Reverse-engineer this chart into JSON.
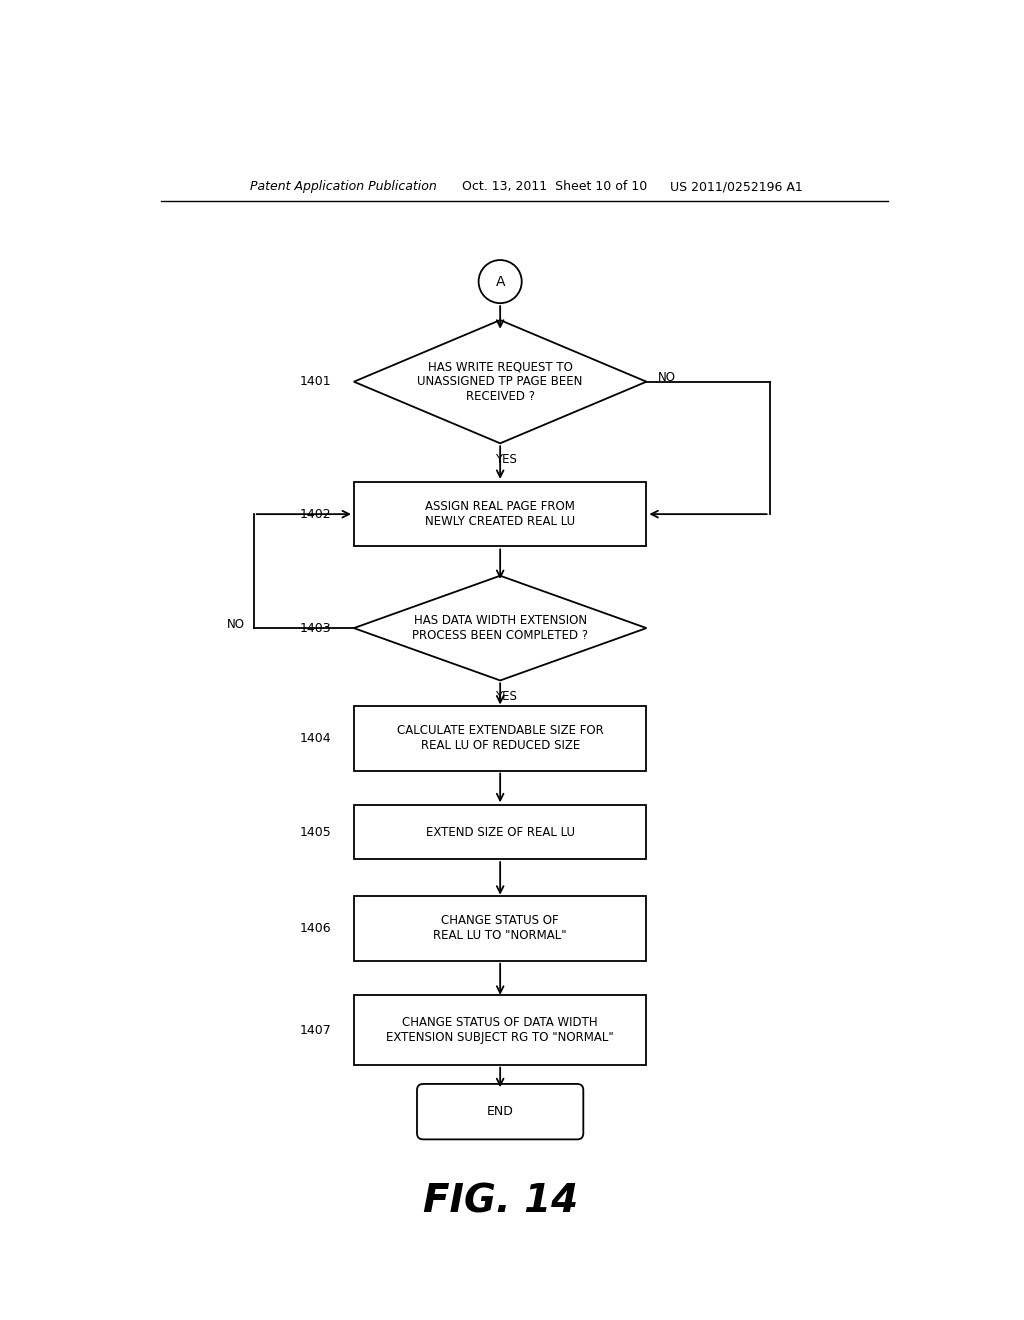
{
  "background_color": "#ffffff",
  "header_left": "Patent Application Publication",
  "header_mid": "Oct. 13, 2011  Sheet 10 of 10",
  "header_right": "US 2011/0252196 A1",
  "figure_label": "FIG. 14",
  "connector_label": "A",
  "step_ids": [
    "1401",
    "1402",
    "1403",
    "1404",
    "1405",
    "1406",
    "1407"
  ],
  "d1401_text": "HAS WRITE REQUEST TO\nUNASSIGNED TP PAGE BEEN\nRECEIVED ?",
  "r1402_text": "ASSIGN REAL PAGE FROM\nNEWLY CREATED REAL LU",
  "d1403_text": "HAS DATA WIDTH EXTENSION\nPROCESS BEEN COMPLETED ?",
  "r1404_text": "CALCULATE EXTENDABLE SIZE FOR\nREAL LU OF REDUCED SIZE",
  "r1405_text": "EXTEND SIZE OF REAL LU",
  "r1406_text": "CHANGE STATUS OF\nREAL LU TO \"NORMAL\"",
  "r1407_text": "CHANGE STATUS OF DATA WIDTH\nEXTENSION SUBJECT RG TO \"NORMAL\"",
  "end_text": "END"
}
